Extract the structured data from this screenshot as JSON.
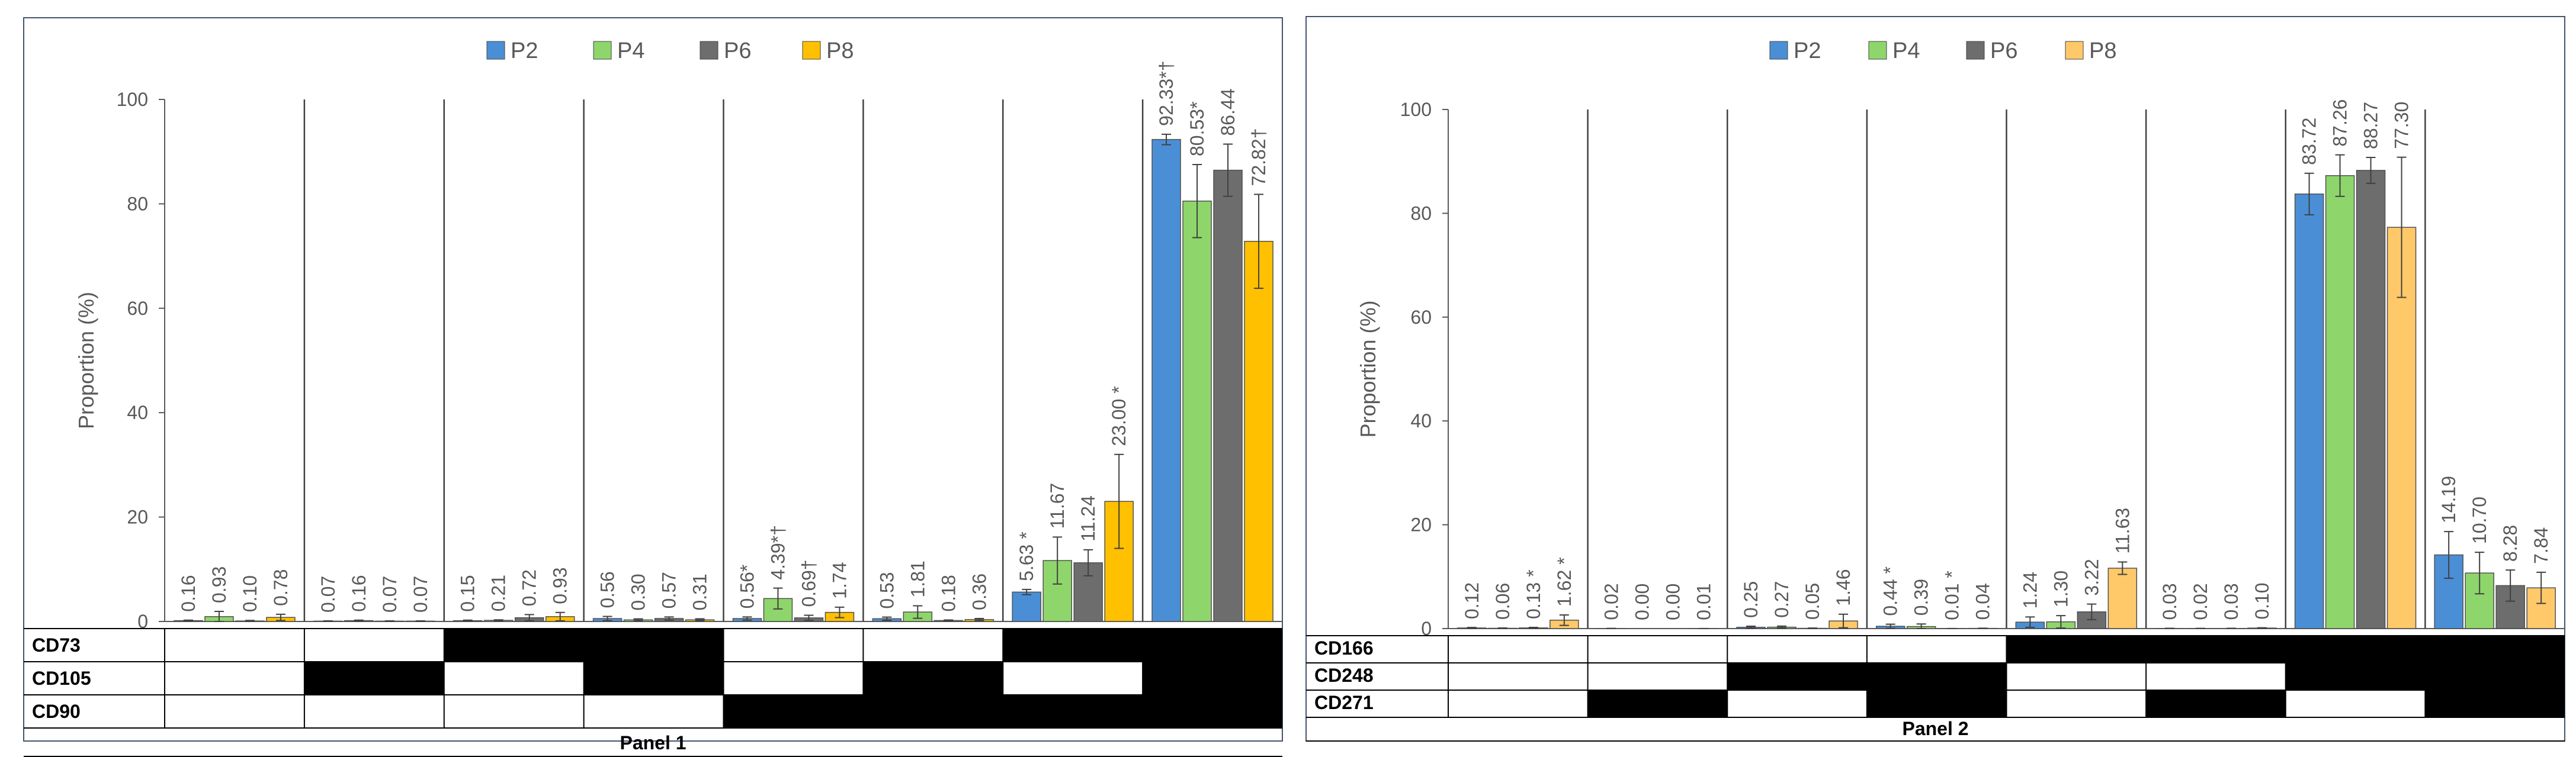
{
  "chart_data": [
    {
      "type": "bar",
      "title": "Panel 1",
      "ylabel": "Proportion (%)",
      "ylim": [
        0,
        100
      ],
      "yticks": [
        "0",
        "20",
        "40",
        "60",
        "80",
        "100"
      ],
      "legend": [
        "P2",
        "P4",
        "P6",
        "P8"
      ],
      "markers": [
        "CD73",
        "CD105",
        "CD90"
      ],
      "groups": [
        {
          "labels": [
            "0.16",
            "0.93",
            "0.10",
            "0.78"
          ],
          "values": [
            0.16,
            0.93,
            0.1,
            0.78
          ],
          "errors": [
            0.1,
            1.0,
            0.1,
            0.6
          ],
          "pattern": [
            false,
            false,
            false
          ]
        },
        {
          "labels": [
            "0.07",
            "0.16",
            "0.07",
            "0.07"
          ],
          "values": [
            0.07,
            0.16,
            0.07,
            0.07
          ],
          "errors": [
            0.05,
            0.1,
            0.05,
            0.05
          ],
          "pattern": [
            false,
            true,
            false
          ]
        },
        {
          "labels": [
            "0.15",
            "0.21",
            "0.72",
            "0.93"
          ],
          "values": [
            0.15,
            0.21,
            0.72,
            0.93
          ],
          "errors": [
            0.1,
            0.1,
            0.6,
            0.8
          ],
          "pattern": [
            true,
            false,
            false
          ]
        },
        {
          "labels": [
            "0.56",
            "0.30",
            "0.57",
            "0.31"
          ],
          "values": [
            0.56,
            0.3,
            0.57,
            0.31
          ],
          "errors": [
            0.4,
            0.2,
            0.3,
            0.2
          ],
          "pattern": [
            true,
            true,
            false
          ]
        },
        {
          "labels": [
            "0.56*",
            "4.39*†",
            "0.69†",
            "1.74"
          ],
          "values": [
            0.56,
            4.39,
            0.69,
            1.74
          ],
          "errors": [
            0.3,
            2.0,
            0.5,
            1.0
          ],
          "pattern": [
            false,
            false,
            true
          ]
        },
        {
          "labels": [
            "0.53",
            "1.81",
            "0.18",
            "0.36"
          ],
          "values": [
            0.53,
            1.81,
            0.18,
            0.36
          ],
          "errors": [
            0.3,
            1.2,
            0.1,
            0.2
          ],
          "pattern": [
            false,
            true,
            true
          ]
        },
        {
          "labels": [
            "5.63 *",
            "11.67",
            "11.24",
            "23.00 *"
          ],
          "values": [
            5.63,
            11.67,
            11.24,
            23.0
          ],
          "errors": [
            0.5,
            4.5,
            2.5,
            9.0
          ],
          "pattern": [
            true,
            false,
            true
          ]
        },
        {
          "labels": [
            "92.33*†",
            "80.53*",
            "86.44",
            "72.82†"
          ],
          "values": [
            92.33,
            80.53,
            86.44,
            72.82
          ],
          "errors": [
            1.0,
            7.0,
            5.0,
            9.0
          ],
          "pattern": [
            true,
            true,
            true
          ]
        }
      ]
    },
    {
      "type": "bar",
      "title": "Panel 2",
      "ylabel": "Proportion (%)",
      "ylim": [
        0,
        100
      ],
      "yticks": [
        "0",
        "20",
        "40",
        "60",
        "80",
        "100"
      ],
      "legend": [
        "P2",
        "P4",
        "P6",
        "P8"
      ],
      "markers": [
        "CD166",
        "CD248",
        "CD271"
      ],
      "groups": [
        {
          "labels": [
            "0.12",
            "0.06",
            "0.13 *",
            "1.62 *"
          ],
          "values": [
            0.12,
            0.06,
            0.13,
            1.62
          ],
          "errors": [
            0.1,
            0.05,
            0.1,
            1.0
          ],
          "pattern": [
            false,
            false,
            false
          ]
        },
        {
          "labels": [
            "0.02",
            "0.00",
            "0.00",
            "0.01"
          ],
          "values": [
            0.02,
            0.0,
            0.0,
            0.01
          ],
          "errors": [
            0.02,
            0.0,
            0.0,
            0.01
          ],
          "pattern": [
            false,
            false,
            true
          ]
        },
        {
          "labels": [
            "0.25",
            "0.27",
            "0.05",
            "1.46"
          ],
          "values": [
            0.25,
            0.27,
            0.05,
            1.46
          ],
          "errors": [
            0.2,
            0.2,
            0.05,
            1.3
          ],
          "pattern": [
            false,
            true,
            false
          ]
        },
        {
          "labels": [
            "0.44 *",
            "0.39",
            "0.01 *",
            "0.04"
          ],
          "values": [
            0.44,
            0.39,
            0.01,
            0.04
          ],
          "errors": [
            0.4,
            0.5,
            0.01,
            0.03
          ],
          "pattern": [
            false,
            true,
            true
          ]
        },
        {
          "labels": [
            "1.24",
            "1.30",
            "3.22",
            "11.63"
          ],
          "values": [
            1.24,
            1.3,
            3.22,
            11.63
          ],
          "errors": [
            1.0,
            1.2,
            1.5,
            1.2
          ],
          "pattern": [
            true,
            false,
            false
          ]
        },
        {
          "labels": [
            "0.03",
            "0.02",
            "0.03",
            "0.10"
          ],
          "values": [
            0.03,
            0.02,
            0.03,
            0.1
          ],
          "errors": [
            0.02,
            0.02,
            0.02,
            0.05
          ],
          "pattern": [
            true,
            false,
            true
          ]
        },
        {
          "labels": [
            "83.72",
            "87.26",
            "88.27",
            "77.30"
          ],
          "values": [
            83.72,
            87.26,
            88.27,
            77.3
          ],
          "errors": [
            4.0,
            4.0,
            2.5,
            13.5
          ],
          "pattern": [
            true,
            true,
            false
          ]
        },
        {
          "labels": [
            "14.19",
            "10.70",
            "8.28",
            "7.84"
          ],
          "values": [
            14.19,
            10.7,
            8.28,
            7.84
          ],
          "errors": [
            4.5,
            4.0,
            3.0,
            3.0
          ],
          "pattern": [
            true,
            true,
            true
          ]
        }
      ]
    }
  ],
  "colors": {
    "panel1": [
      "#4a8fd6",
      "#8ed66b",
      "#6d6d6d",
      "#ffc000"
    ],
    "panel2": [
      "#4a8fd6",
      "#8ed66b",
      "#6d6d6d",
      "#ffc96a"
    ]
  }
}
